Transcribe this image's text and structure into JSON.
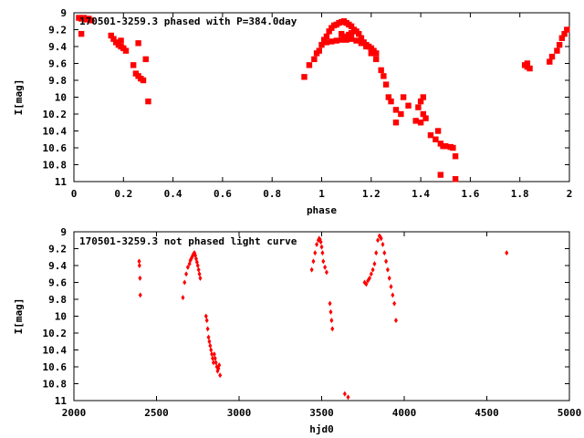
{
  "colors": {
    "points": "#ff0000",
    "frame": "#000000",
    "background": "#ffffff"
  },
  "chart_data": [
    {
      "type": "scatter",
      "title": "170501-3259.3 phased with P=384.0day",
      "xlabel": "phase",
      "ylabel": "I[mag]",
      "xlim": [
        0,
        2
      ],
      "ylim": [
        9,
        11
      ],
      "y_inverted": true,
      "grid": false,
      "x_ticks": [
        "0",
        "0.2",
        "0.4",
        "0.6",
        "0.8",
        "1",
        "1.2",
        "1.4",
        "1.6",
        "1.8",
        "2"
      ],
      "y_ticks": [
        "9",
        "9.2",
        "9.4",
        "9.6",
        "9.8",
        "10",
        "10.2",
        "10.4",
        "10.6",
        "10.8",
        "11"
      ],
      "series": [
        {
          "x": [
            0.02,
            0.03,
            0.04,
            0.05,
            0.06,
            0.07,
            0.03,
            0.15,
            0.16,
            0.17,
            0.18,
            0.19,
            0.2,
            0.21,
            0.19,
            0.24,
            0.25,
            0.26,
            0.26,
            0.27,
            0.28,
            0.29,
            0.3,
            0.93,
            0.95,
            0.97,
            0.98,
            0.99,
            1.0,
            1.01,
            1.02,
            1.03,
            1.04,
            1.05,
            1.06,
            1.07,
            1.08,
            1.09,
            1.1,
            1.11,
            1.12,
            1.13,
            1.14,
            1.15,
            1.16,
            1.17,
            1.18,
            1.19,
            1.2,
            1.21,
            1.22,
            1.02,
            1.04,
            1.06,
            1.08,
            1.1,
            1.12,
            1.14,
            1.16,
            1.18,
            1.2,
            1.22,
            1.24,
            1.25,
            1.26,
            1.27,
            1.28,
            1.3,
            1.33,
            1.35,
            1.38,
            1.4,
            1.41,
            1.42,
            1.44,
            1.46,
            1.47,
            1.48,
            1.49,
            1.5,
            1.52,
            1.53,
            1.54,
            1.48,
            1.54,
            1.82,
            1.83,
            1.84,
            1.83,
            1.92,
            1.93,
            1.95,
            1.96,
            1.97,
            1.98,
            1.99,
            1.08,
            1.09,
            1.1,
            1.11,
            1.12,
            1.3,
            1.32,
            1.39,
            1.4,
            1.41
          ],
          "y": [
            9.06,
            9.07,
            9.06,
            9.08,
            9.07,
            9.09,
            9.25,
            9.27,
            9.31,
            9.35,
            9.38,
            9.4,
            9.42,
            9.45,
            9.33,
            9.62,
            9.72,
            9.36,
            9.75,
            9.78,
            9.8,
            9.55,
            10.05,
            9.76,
            9.62,
            9.55,
            9.48,
            9.45,
            9.38,
            9.32,
            9.28,
            9.22,
            9.18,
            9.15,
            9.14,
            9.12,
            9.11,
            9.1,
            9.12,
            9.14,
            9.16,
            9.2,
            9.22,
            9.25,
            9.3,
            9.35,
            9.38,
            9.4,
            9.42,
            9.45,
            9.48,
            9.35,
            9.34,
            9.33,
            9.32,
            9.32,
            9.31,
            9.33,
            9.36,
            9.4,
            9.48,
            9.55,
            9.68,
            9.75,
            9.85,
            10.0,
            10.05,
            10.3,
            10.0,
            10.1,
            10.28,
            10.3,
            10.2,
            10.25,
            10.45,
            10.5,
            10.4,
            10.55,
            10.58,
            10.58,
            10.59,
            10.6,
            10.7,
            10.92,
            10.97,
            9.62,
            9.64,
            9.66,
            9.6,
            9.58,
            9.52,
            9.45,
            9.38,
            9.3,
            9.25,
            9.2,
            9.25,
            9.28,
            9.3,
            9.26,
            9.24,
            10.15,
            10.2,
            10.12,
            10.05,
            10.0
          ]
        }
      ]
    },
    {
      "type": "scatter",
      "title": "170501-3259.3 not phased light curve",
      "xlabel": "hjd0",
      "ylabel": "I[mag]",
      "xlim": [
        2000,
        5000
      ],
      "ylim": [
        9,
        11
      ],
      "y_inverted": true,
      "grid": false,
      "x_ticks": [
        "2000",
        "2500",
        "3000",
        "3500",
        "4000",
        "4500",
        "5000"
      ],
      "y_ticks": [
        "9",
        "9.2",
        "9.4",
        "9.6",
        "9.8",
        "10",
        "10.2",
        "10.4",
        "10.6",
        "10.8",
        "11"
      ],
      "series": [
        {
          "x": [
            2395,
            2397,
            2400,
            2402,
            2660,
            2670,
            2680,
            2690,
            2700,
            2705,
            2710,
            2715,
            2720,
            2725,
            2730,
            2735,
            2740,
            2745,
            2750,
            2755,
            2760,
            2765,
            2800,
            2805,
            2810,
            2815,
            2820,
            2825,
            2830,
            2835,
            2840,
            2845,
            2850,
            2855,
            2860,
            2865,
            2870,
            2875,
            2880,
            2885,
            3440,
            3450,
            3460,
            3470,
            3480,
            3485,
            3490,
            3495,
            3500,
            3505,
            3510,
            3520,
            3530,
            3550,
            3555,
            3560,
            3565,
            3640,
            3660,
            3760,
            3770,
            3780,
            3790,
            3800,
            3810,
            3820,
            3830,
            3840,
            3850,
            3855,
            3860,
            3870,
            3880,
            3890,
            3900,
            3910,
            3920,
            3930,
            3940,
            3950,
            4620
          ],
          "y": [
            9.35,
            9.4,
            9.55,
            9.75,
            9.78,
            9.6,
            9.5,
            9.42,
            9.38,
            9.34,
            9.32,
            9.3,
            9.28,
            9.26,
            9.25,
            9.28,
            9.32,
            9.36,
            9.4,
            9.45,
            9.5,
            9.55,
            10.0,
            10.05,
            10.15,
            10.25,
            10.3,
            10.35,
            10.4,
            10.45,
            10.5,
            10.55,
            10.45,
            10.5,
            10.55,
            10.6,
            10.65,
            10.62,
            10.58,
            10.7,
            9.45,
            9.35,
            9.25,
            9.15,
            9.1,
            9.08,
            9.09,
            9.12,
            9.18,
            9.25,
            9.35,
            9.42,
            9.48,
            9.85,
            9.95,
            10.05,
            10.15,
            10.92,
            10.96,
            9.6,
            9.62,
            9.58,
            9.55,
            9.5,
            9.45,
            9.38,
            9.25,
            9.1,
            9.05,
            9.06,
            9.08,
            9.15,
            9.25,
            9.35,
            9.45,
            9.55,
            9.65,
            9.75,
            9.85,
            10.05,
            9.25
          ]
        }
      ]
    }
  ]
}
